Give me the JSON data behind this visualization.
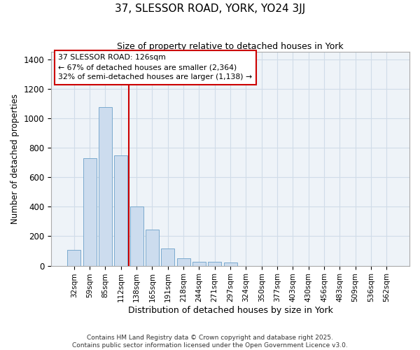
{
  "title1": "37, SLESSOR ROAD, YORK, YO24 3JJ",
  "title2": "Size of property relative to detached houses in York",
  "xlabel": "Distribution of detached houses by size in York",
  "ylabel": "Number of detached properties",
  "categories": [
    "32sqm",
    "59sqm",
    "85sqm",
    "112sqm",
    "138sqm",
    "165sqm",
    "191sqm",
    "218sqm",
    "244sqm",
    "271sqm",
    "297sqm",
    "324sqm",
    "350sqm",
    "377sqm",
    "403sqm",
    "430sqm",
    "456sqm",
    "483sqm",
    "509sqm",
    "536sqm",
    "562sqm"
  ],
  "values": [
    107,
    730,
    1075,
    750,
    400,
    245,
    115,
    50,
    25,
    25,
    20,
    0,
    0,
    0,
    0,
    0,
    0,
    0,
    0,
    0,
    0
  ],
  "bar_color": "#ccdcee",
  "bar_edge_color": "#7aaace",
  "red_line_index": 3.5,
  "annotation_title": "37 SLESSOR ROAD: 126sqm",
  "annotation_line1": "← 67% of detached houses are smaller (2,364)",
  "annotation_line2": "32% of semi-detached houses are larger (1,138) →",
  "annotation_box_facecolor": "#ffffff",
  "annotation_box_edgecolor": "#cc0000",
  "grid_color": "#d0dce8",
  "background_color": "#ffffff",
  "plot_bg_color": "#eef3f8",
  "footer1": "Contains HM Land Registry data © Crown copyright and database right 2025.",
  "footer2": "Contains public sector information licensed under the Open Government Licence v3.0.",
  "ylim": [
    0,
    1450
  ],
  "yticks": [
    0,
    200,
    400,
    600,
    800,
    1000,
    1200,
    1400
  ]
}
